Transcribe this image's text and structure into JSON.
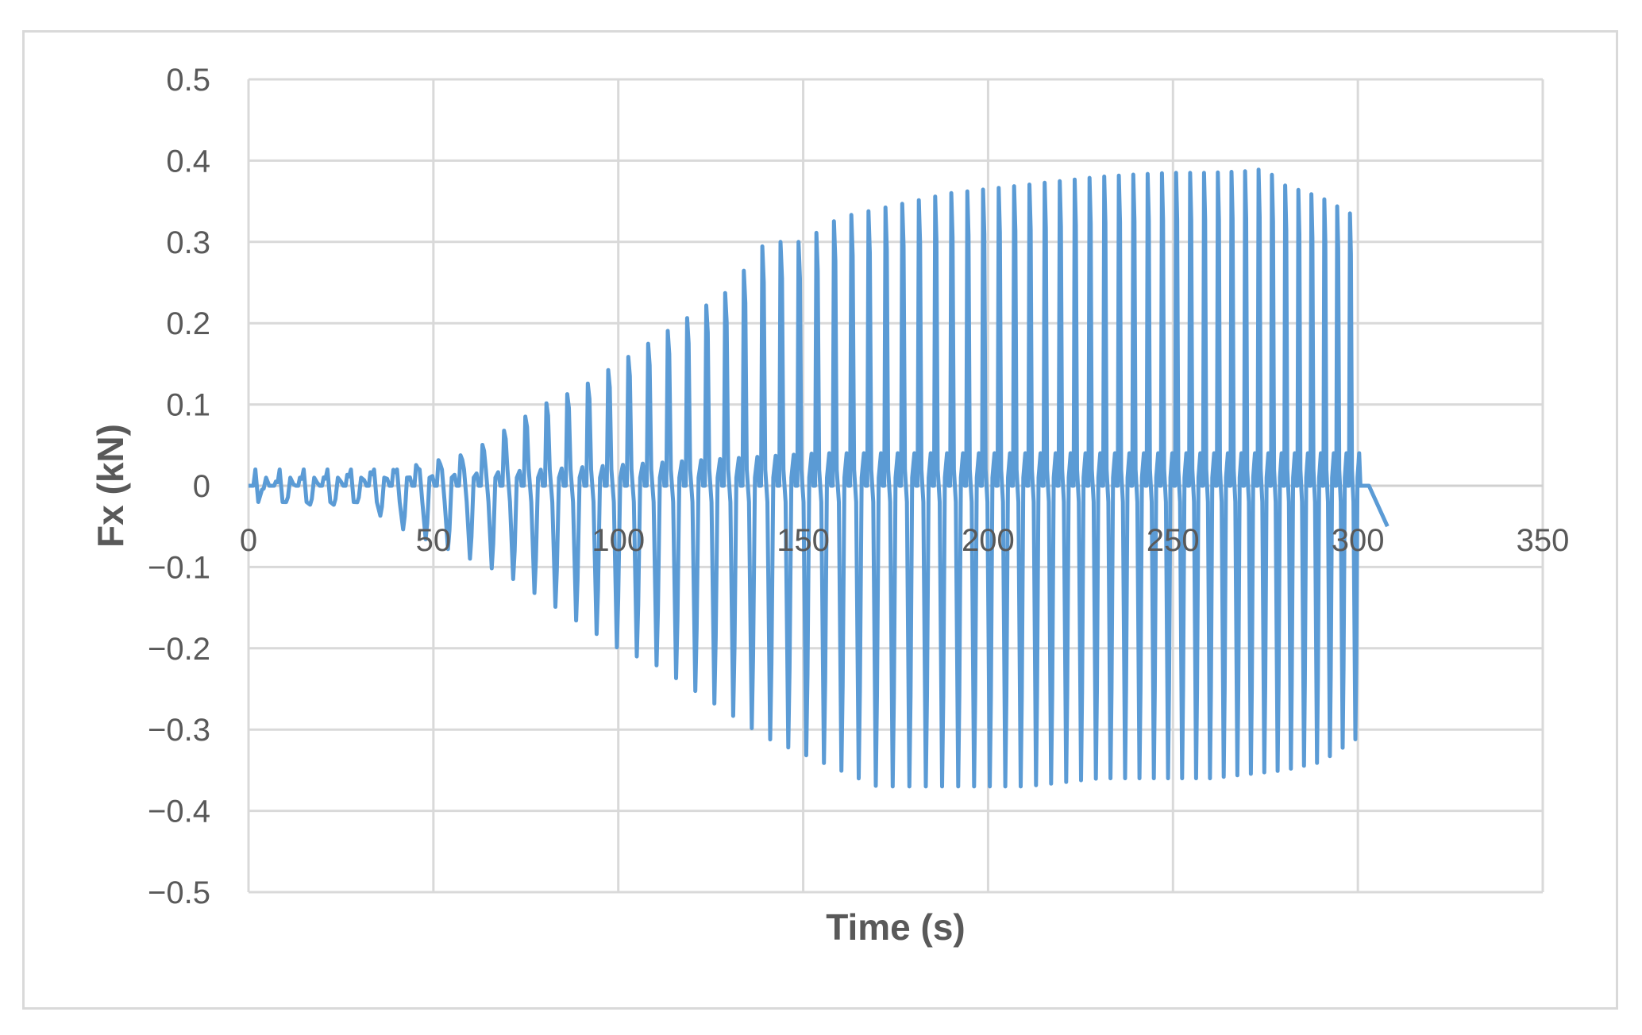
{
  "chart_data": {
    "type": "line",
    "title": "",
    "xlabel": "Time (s)",
    "ylabel": "Fx (kN)",
    "xlim": [
      0,
      350
    ],
    "ylim": [
      -0.5,
      0.5
    ],
    "x_ticks": [
      0,
      50,
      100,
      150,
      200,
      250,
      300,
      350
    ],
    "y_ticks": [
      0.5,
      0.4,
      0.3,
      0.2,
      0.1,
      0,
      -0.1,
      -0.2,
      -0.3,
      -0.4,
      -0.5
    ],
    "x_tick_labels": [
      "0",
      "50",
      "100",
      "150",
      "200",
      "250",
      "300",
      "350"
    ],
    "y_tick_labels": [
      "0.5",
      "0.4",
      "0.3",
      "0.2",
      "0.1",
      "0",
      "−0.1",
      "−0.2",
      "−0.3",
      "−0.4",
      "−0.5"
    ],
    "grid": true,
    "legend": "none",
    "series": [
      {
        "color": "#5b9bd5",
        "description_points": {
          "cycle_peaks_max": [
            [
              5,
              0.0
            ],
            [
              10,
              0.01
            ],
            [
              20,
              0.01
            ],
            [
              30,
              0.015
            ],
            [
              40,
              0.02
            ],
            [
              50,
              0.03
            ],
            [
              60,
              0.04
            ],
            [
              70,
              0.07
            ],
            [
              80,
              0.1
            ],
            [
              90,
              0.12
            ],
            [
              100,
              0.15
            ],
            [
              110,
              0.18
            ],
            [
              120,
              0.21
            ],
            [
              130,
              0.24
            ],
            [
              140,
              0.3
            ],
            [
              150,
              0.3
            ],
            [
              160,
              0.33
            ],
            [
              170,
              0.34
            ],
            [
              180,
              0.35
            ],
            [
              190,
              0.36
            ],
            [
              200,
              0.365
            ],
            [
              210,
              0.37
            ],
            [
              220,
              0.375
            ],
            [
              230,
              0.38
            ],
            [
              240,
              0.383
            ],
            [
              250,
              0.385
            ],
            [
              260,
              0.385
            ],
            [
              270,
              0.387
            ],
            [
              275,
              0.39
            ],
            [
              280,
              0.37
            ],
            [
              290,
              0.355
            ],
            [
              300,
              0.33
            ]
          ],
          "cycle_peaks_min": [
            [
              5,
              -0.005
            ],
            [
              10,
              -0.02
            ],
            [
              20,
              -0.025
            ],
            [
              30,
              -0.02
            ],
            [
              40,
              -0.05
            ],
            [
              50,
              -0.07
            ],
            [
              60,
              -0.09
            ],
            [
              70,
              -0.11
            ],
            [
              80,
              -0.14
            ],
            [
              90,
              -0.17
            ],
            [
              100,
              -0.2
            ],
            [
              110,
              -0.22
            ],
            [
              120,
              -0.25
            ],
            [
              130,
              -0.28
            ],
            [
              140,
              -0.31
            ],
            [
              150,
              -0.33
            ],
            [
              160,
              -0.35
            ],
            [
              170,
              -0.37
            ],
            [
              180,
              -0.37
            ],
            [
              190,
              -0.37
            ],
            [
              200,
              -0.37
            ],
            [
              210,
              -0.37
            ],
            [
              220,
              -0.365
            ],
            [
              230,
              -0.36
            ],
            [
              240,
              -0.36
            ],
            [
              250,
              -0.36
            ],
            [
              260,
              -0.36
            ],
            [
              270,
              -0.355
            ],
            [
              280,
              -0.35
            ],
            [
              290,
              -0.34
            ],
            [
              300,
              -0.31
            ]
          ],
          "end_points": [
            [
              300,
              0.0
            ],
            [
              303,
              0.0
            ],
            [
              308,
              -0.05
            ]
          ]
        }
      }
    ],
    "colors": {
      "series": "#5b9bd5",
      "grid": "#d9d9d9",
      "text": "#595959",
      "border": "#d9d9d9"
    }
  }
}
